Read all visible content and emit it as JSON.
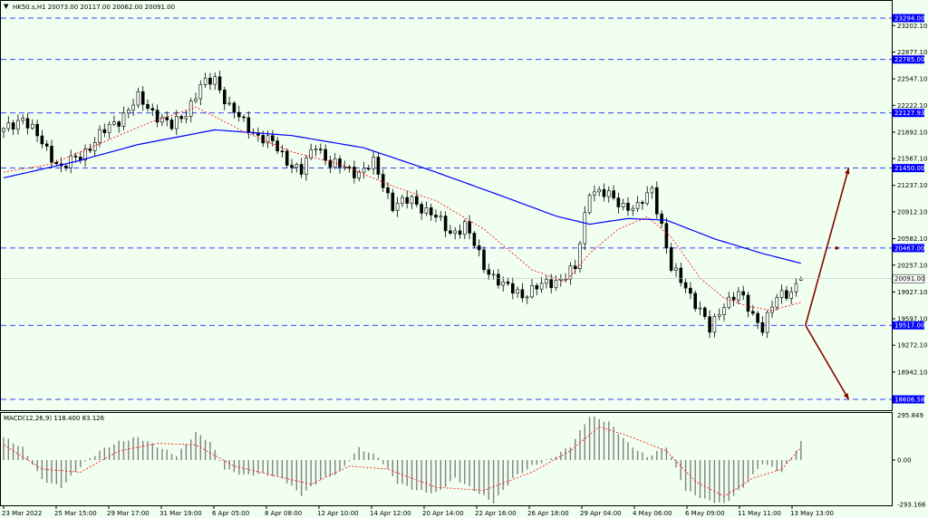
{
  "header": {
    "title": "HK50.s,H1  20073.00 20117.00 20062.00 20091.00",
    "collapse_glyph": "▼"
  },
  "macd_header": "MACD(12,26,9) 118.400 83.126",
  "colors": {
    "background": "#f0fff0",
    "candle": "#000000",
    "ma_slow": "#0000ff",
    "ma_fast": "#ff0000",
    "level_line": "#0000ff",
    "level_label_bg": "#0000ff",
    "arrow": "#8b0000",
    "macd_hist": "#808080",
    "macd_signal": "#ff0000"
  },
  "chart_data": [
    {
      "type": "candlestick",
      "symbol": "HK50.s",
      "timeframe": "H1",
      "ohlc_last": {
        "open": 20073.0,
        "high": 20117.0,
        "low": 20062.0,
        "close": 20091.0
      },
      "price_axis_ticks": [
        23202.1,
        22877.1,
        22547.1,
        22222.1,
        21892.1,
        21567.1,
        21237.1,
        20912.1,
        20582.1,
        20257.1,
        19927.1,
        19597.1,
        19272.1,
        18942.1
      ],
      "time_axis_ticks": [
        "23 Mar 2022",
        "25 Mar 15:00",
        "29 Mar 17:00",
        "31 Mar 19:00",
        "6 Apr 05:00",
        "8 Apr 08:00",
        "12 Apr 10:00",
        "14 Apr 12:00",
        "20 Apr 14:00",
        "22 Apr 16:00",
        "26 Apr 18:00",
        "29 Apr 04:00",
        "4 May 06:00",
        "6 May 09:00",
        "11 May 11:00",
        "13 May 13:00"
      ],
      "horizontal_levels": [
        23294.0,
        22785.0,
        22127.93,
        21450.0,
        20467.0,
        19517.0,
        18606.58
      ],
      "current_price": 20091.0,
      "close_path": [
        [
          0,
          21900
        ],
        [
          4,
          22080
        ],
        [
          8,
          21750
        ],
        [
          12,
          21450
        ],
        [
          16,
          21600
        ],
        [
          20,
          21850
        ],
        [
          24,
          22050
        ],
        [
          28,
          22300
        ],
        [
          32,
          22100
        ],
        [
          35,
          21950
        ],
        [
          38,
          22150
        ],
        [
          41,
          22450
        ],
        [
          44,
          22550
        ],
        [
          47,
          22200
        ],
        [
          50,
          22000
        ],
        [
          53,
          21850
        ],
        [
          56,
          21750
        ],
        [
          59,
          21550
        ],
        [
          62,
          21400
        ],
        [
          65,
          21750
        ],
        [
          68,
          21500
        ],
        [
          71,
          21450
        ],
        [
          74,
          21400
        ],
        [
          77,
          21500
        ],
        [
          81,
          21000
        ],
        [
          85,
          21050
        ],
        [
          89,
          20900
        ],
        [
          93,
          20650
        ],
        [
          96,
          20750
        ],
        [
          100,
          20250
        ],
        [
          104,
          20000
        ],
        [
          108,
          19900
        ],
        [
          112,
          20000
        ],
        [
          116,
          20100
        ],
        [
          119,
          20200
        ],
        [
          122,
          21200
        ],
        [
          126,
          21100
        ],
        [
          129,
          21000
        ],
        [
          132,
          20950
        ],
        [
          135,
          21200
        ],
        [
          137,
          20750
        ],
        [
          139,
          20200
        ],
        [
          142,
          20000
        ],
        [
          145,
          19700
        ],
        [
          147,
          19450
        ],
        [
          150,
          19800
        ],
        [
          153,
          19900
        ],
        [
          156,
          19650
        ],
        [
          158,
          19500
        ],
        [
          161,
          19850
        ],
        [
          164,
          19950
        ],
        [
          166,
          20091
        ]
      ],
      "ma_slow_path": [
        [
          0,
          21330
        ],
        [
          15,
          21530
        ],
        [
          28,
          21740
        ],
        [
          44,
          21920
        ],
        [
          60,
          21850
        ],
        [
          75,
          21700
        ],
        [
          90,
          21400
        ],
        [
          105,
          21080
        ],
        [
          115,
          20860
        ],
        [
          122,
          20760
        ],
        [
          130,
          20830
        ],
        [
          138,
          20810
        ],
        [
          148,
          20580
        ],
        [
          158,
          20400
        ],
        [
          166,
          20280
        ]
      ],
      "ma_fast_path": [
        [
          0,
          21400
        ],
        [
          10,
          21500
        ],
        [
          20,
          21750
        ],
        [
          30,
          22000
        ],
        [
          40,
          22200
        ],
        [
          50,
          21900
        ],
        [
          60,
          21650
        ],
        [
          70,
          21500
        ],
        [
          80,
          21250
        ],
        [
          90,
          21050
        ],
        [
          100,
          20700
        ],
        [
          110,
          20200
        ],
        [
          117,
          20050
        ],
        [
          122,
          20400
        ],
        [
          128,
          20700
        ],
        [
          134,
          20850
        ],
        [
          139,
          20600
        ],
        [
          145,
          20100
        ],
        [
          150,
          19850
        ],
        [
          155,
          19750
        ],
        [
          160,
          19700
        ],
        [
          166,
          19800
        ]
      ],
      "projections": [
        {
          "from": [
            166,
            19517
          ],
          "to": [
            175,
            21450
          ]
        },
        {
          "from": [
            166,
            19517
          ],
          "to": [
            175,
            18606.58
          ]
        }
      ]
    },
    {
      "type": "bar",
      "name": "MACD(12,26,9)",
      "macd": 118.4,
      "signal": 83.126,
      "axis_ticks": [
        295.849,
        0.0,
        -293.166
      ],
      "hist_path": [
        [
          0,
          150
        ],
        [
          4,
          80
        ],
        [
          8,
          -130
        ],
        [
          12,
          -180
        ],
        [
          16,
          -40
        ],
        [
          20,
          60
        ],
        [
          24,
          120
        ],
        [
          28,
          150
        ],
        [
          32,
          90
        ],
        [
          36,
          30
        ],
        [
          40,
          180
        ],
        [
          43,
          120
        ],
        [
          46,
          -60
        ],
        [
          50,
          -100
        ],
        [
          54,
          -90
        ],
        [
          58,
          -120
        ],
        [
          62,
          -230
        ],
        [
          66,
          -130
        ],
        [
          70,
          -80
        ],
        [
          74,
          80
        ],
        [
          78,
          20
        ],
        [
          82,
          -150
        ],
        [
          86,
          -200
        ],
        [
          90,
          -220
        ],
        [
          94,
          -120
        ],
        [
          98,
          -200
        ],
        [
          102,
          -280
        ],
        [
          106,
          -120
        ],
        [
          110,
          -40
        ],
        [
          114,
          10
        ],
        [
          118,
          90
        ],
        [
          122,
          290
        ],
        [
          126,
          250
        ],
        [
          130,
          110
        ],
        [
          134,
          20
        ],
        [
          138,
          90
        ],
        [
          142,
          -200
        ],
        [
          146,
          -260
        ],
        [
          150,
          -290
        ],
        [
          154,
          -180
        ],
        [
          158,
          -20
        ],
        [
          162,
          -80
        ],
        [
          166,
          118
        ]
      ],
      "signal_path": [
        [
          0,
          100
        ],
        [
          8,
          -60
        ],
        [
          16,
          -80
        ],
        [
          24,
          60
        ],
        [
          32,
          110
        ],
        [
          40,
          100
        ],
        [
          48,
          -40
        ],
        [
          56,
          -100
        ],
        [
          64,
          -160
        ],
        [
          72,
          -40
        ],
        [
          80,
          -60
        ],
        [
          90,
          -180
        ],
        [
          100,
          -200
        ],
        [
          110,
          -80
        ],
        [
          118,
          60
        ],
        [
          124,
          220
        ],
        [
          130,
          160
        ],
        [
          138,
          60
        ],
        [
          144,
          -140
        ],
        [
          150,
          -240
        ],
        [
          156,
          -120
        ],
        [
          162,
          -60
        ],
        [
          166,
          83
        ]
      ]
    }
  ]
}
